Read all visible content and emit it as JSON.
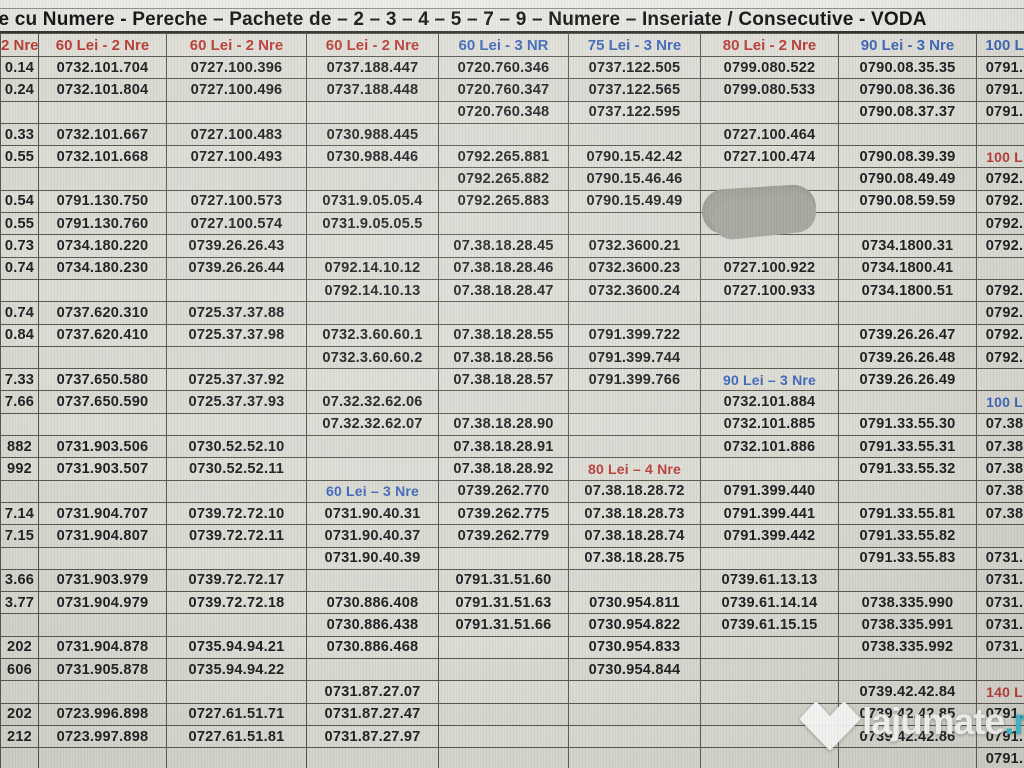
{
  "title": "le cu Numere - Pereche – Pachete de – 2 – 3 – 4 – 5 – 7 – 9 – Numere – Inseriate / Consecutive - VODA",
  "watermark": {
    "name": "lajumate",
    "tld": ".ro"
  },
  "colors": {
    "header_red": "#b93b36",
    "header_blue": "#3c66b8",
    "body": "#1d1d20",
    "redaction": "#a2a19a",
    "wm_tld": "#39bed2"
  },
  "table": {
    "headers": [
      {
        "label": "2 Nre",
        "color": "red"
      },
      {
        "label": "60 Lei - 2 Nre",
        "color": "red"
      },
      {
        "label": "60 Lei - 2 Nre",
        "color": "red"
      },
      {
        "label": "60 Lei - 2 Nre",
        "color": "red"
      },
      {
        "label": "60 Lei - 3 NR",
        "color": "blue"
      },
      {
        "label": "75 Lei - 3 Nre",
        "color": "blue"
      },
      {
        "label": "80 Lei - 2 Nre",
        "color": "red"
      },
      {
        "label": "90 Lei - 3 Nre",
        "color": "blue"
      },
      {
        "label": "100 L",
        "color": "blue"
      }
    ],
    "rows": [
      [
        "0.14",
        "0732.101.704",
        "0727.100.396",
        "0737.188.447",
        "0720.760.346",
        "0737.122.505",
        "0799.080.522",
        "0790.08.35.35",
        "0791."
      ],
      [
        "0.24",
        "0732.101.804",
        "0727.100.496",
        "0737.188.448",
        "0720.760.347",
        "0737.122.565",
        "0799.080.533",
        "0790.08.36.36",
        "0791."
      ],
      [
        "",
        "",
        "",
        "",
        "0720.760.348",
        "0737.122.595",
        "",
        "0790.08.37.37",
        "0791."
      ],
      [
        "0.33",
        "0732.101.667",
        "0727.100.483",
        "0730.988.445",
        "",
        "",
        "0727.100.464",
        "",
        ""
      ],
      [
        "0.55",
        "0732.101.668",
        "0727.100.493",
        "0730.988.446",
        "0792.265.881",
        "0790.15.42.42",
        "0727.100.474",
        "0790.08.39.39",
        {
          "t": "100 L",
          "c": "red"
        }
      ],
      [
        "",
        "",
        "",
        "",
        "0792.265.882",
        "0790.15.46.46",
        "",
        "0790.08.49.49",
        "0792."
      ],
      [
        "0.54",
        "0791.130.750",
        "0727.100.573",
        "0731.9.05.05.4",
        "0792.265.883",
        "0790.15.49.49",
        "",
        "0790.08.59.59",
        "0792."
      ],
      [
        "0.55",
        "0791.130.760",
        "0727.100.574",
        "0731.9.05.05.5",
        "",
        "",
        "",
        "",
        "0792."
      ],
      [
        "0.73",
        "0734.180.220",
        "0739.26.26.43",
        "",
        "07.38.18.28.45",
        "0732.3600.21",
        "",
        "0734.1800.31",
        "0792."
      ],
      [
        "0.74",
        "0734.180.230",
        "0739.26.26.44",
        "0792.14.10.12",
        "07.38.18.28.46",
        "0732.3600.23",
        "0727.100.922",
        "0734.1800.41",
        ""
      ],
      [
        "",
        "",
        "",
        "0792.14.10.13",
        "07.38.18.28.47",
        "0732.3600.24",
        "0727.100.933",
        "0734.1800.51",
        "0792."
      ],
      [
        "0.74",
        "0737.620.310",
        "0725.37.37.88",
        "",
        "",
        "",
        "",
        "",
        "0792."
      ],
      [
        "0.84",
        "0737.620.410",
        "0725.37.37.98",
        "0732.3.60.60.1",
        "07.38.18.28.55",
        "0791.399.722",
        "",
        "0739.26.26.47",
        "0792."
      ],
      [
        "",
        "",
        "",
        "0732.3.60.60.2",
        "07.38.18.28.56",
        "0791.399.744",
        "",
        "0739.26.26.48",
        "0792."
      ],
      [
        "7.33",
        "0737.650.580",
        "0725.37.37.92",
        "",
        "07.38.18.28.57",
        "0791.399.766",
        {
          "t": "90 Lei – 3 Nre",
          "c": "blue"
        },
        "0739.26.26.49",
        ""
      ],
      [
        "7.66",
        "0737.650.590",
        "0725.37.37.93",
        "07.32.32.62.06",
        "",
        "",
        "0732.101.884",
        "",
        {
          "t": "100 L",
          "c": "blue"
        }
      ],
      [
        "",
        "",
        "",
        "07.32.32.62.07",
        "07.38.18.28.90",
        "",
        "0732.101.885",
        "0791.33.55.30",
        "07.38"
      ],
      [
        "882",
        "0731.903.506",
        "0730.52.52.10",
        "",
        "07.38.18.28.91",
        "",
        "0732.101.886",
        "0791.33.55.31",
        "07.38"
      ],
      [
        "992",
        "0731.903.507",
        "0730.52.52.11",
        "",
        "07.38.18.28.92",
        {
          "t": "80 Lei – 4 Nre",
          "c": "red"
        },
        "",
        "0791.33.55.32",
        "07.38"
      ],
      [
        "",
        "",
        "",
        {
          "t": "60 Lei – 3 Nre",
          "c": "blue"
        },
        "0739.262.770",
        "07.38.18.28.72",
        "0791.399.440",
        "",
        "07.38"
      ],
      [
        "7.14",
        "0731.904.707",
        "0739.72.72.10",
        "0731.90.40.31",
        "0739.262.775",
        "07.38.18.28.73",
        "0791.399.441",
        "0791.33.55.81",
        "07.38"
      ],
      [
        "7.15",
        "0731.904.807",
        "0739.72.72.11",
        "0731.90.40.37",
        "0739.262.779",
        "07.38.18.28.74",
        "0791.399.442",
        "0791.33.55.82",
        ""
      ],
      [
        "",
        "",
        "",
        "0731.90.40.39",
        "",
        "07.38.18.28.75",
        "",
        "0791.33.55.83",
        "0731."
      ],
      [
        "3.66",
        "0731.903.979",
        "0739.72.72.17",
        "",
        "0791.31.51.60",
        "",
        "0739.61.13.13",
        "",
        "0731."
      ],
      [
        "3.77",
        "0731.904.979",
        "0739.72.72.18",
        "0730.886.408",
        "0791.31.51.63",
        "0730.954.811",
        "0739.61.14.14",
        "0738.335.990",
        "0731."
      ],
      [
        "",
        "",
        "",
        "0730.886.438",
        "0791.31.51.66",
        "0730.954.822",
        "0739.61.15.15",
        "0738.335.991",
        "0731."
      ],
      [
        "202",
        "0731.904.878",
        "0735.94.94.21",
        "0730.886.468",
        "",
        "0730.954.833",
        "",
        "0738.335.992",
        "0731."
      ],
      [
        "606",
        "0731.905.878",
        "0735.94.94.22",
        "",
        "",
        "0730.954.844",
        "",
        "",
        ""
      ],
      [
        "",
        "",
        "",
        "0731.87.27.07",
        "",
        "",
        "",
        "0739.42.42.84",
        {
          "t": "140 L",
          "c": "red"
        }
      ],
      [
        "202",
        "0723.996.898",
        "0727.61.51.71",
        "0731.87.27.47",
        "",
        "",
        "",
        "0739.42.42.85",
        "0791."
      ],
      [
        "212",
        "0723.997.898",
        "0727.61.51.81",
        "0731.87.27.97",
        "",
        "",
        "",
        "0739.42.42.86",
        "0791."
      ],
      [
        "",
        "",
        "",
        "",
        "",
        "",
        "",
        "",
        "0791."
      ]
    ]
  }
}
